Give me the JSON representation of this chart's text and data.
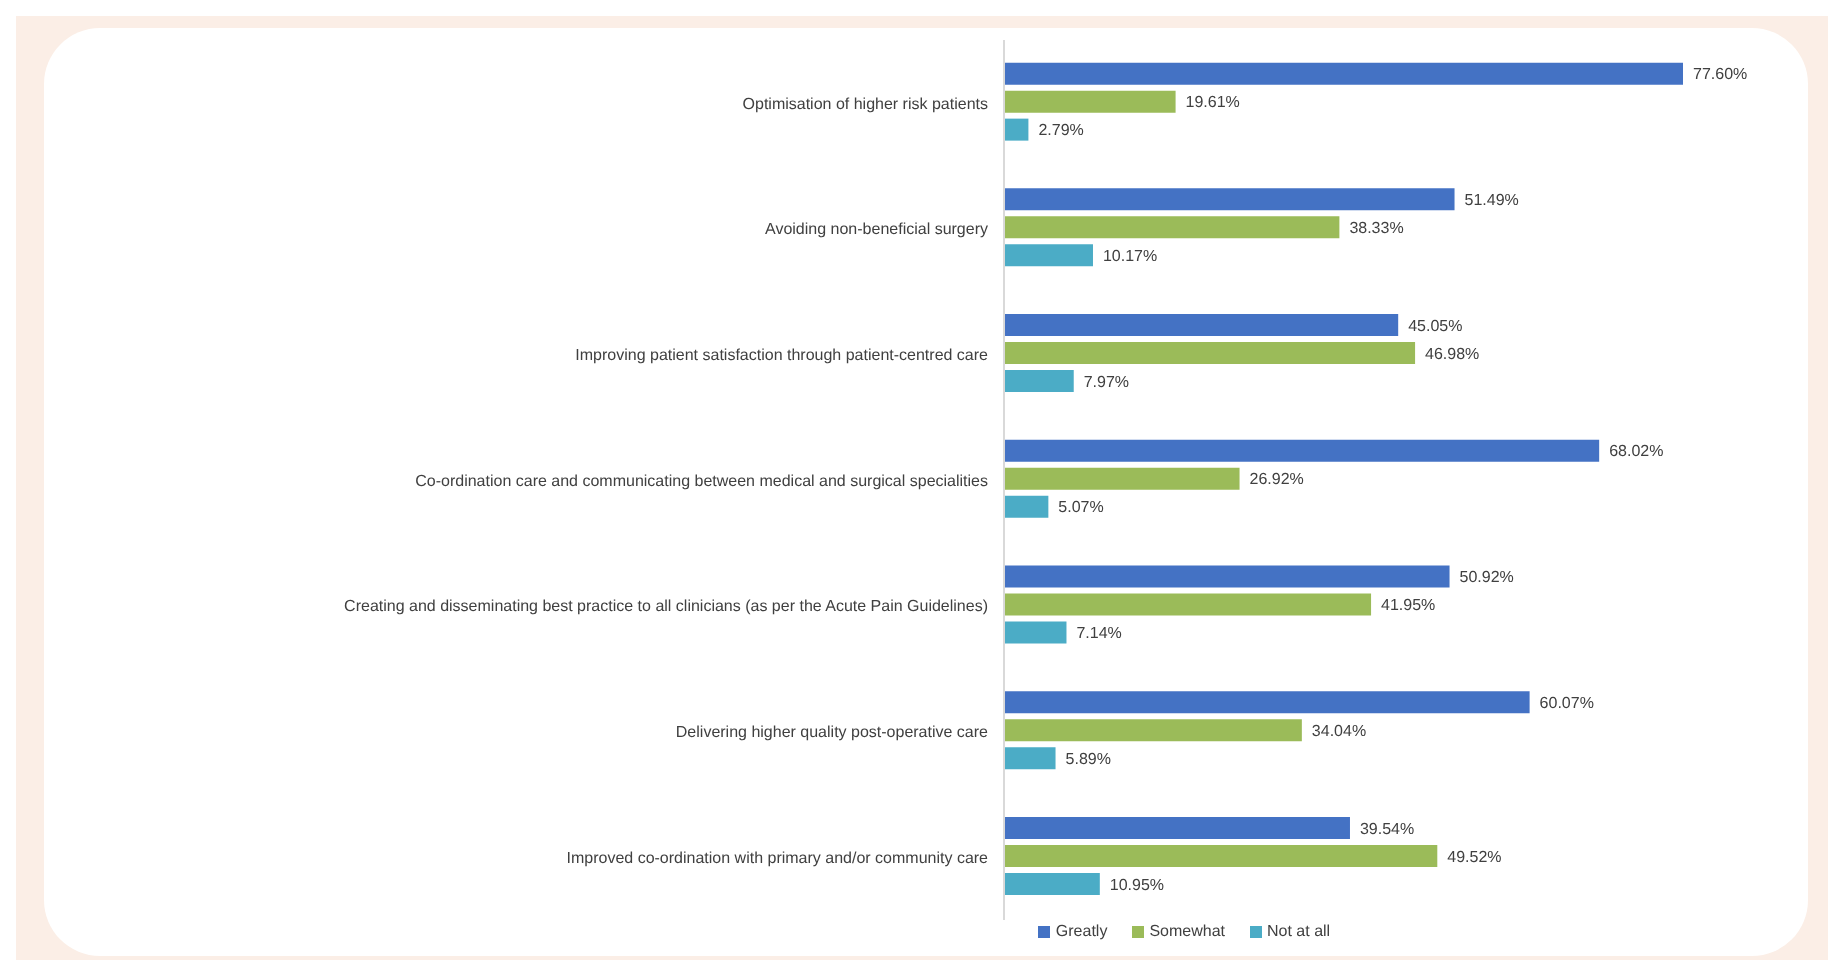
{
  "chart_data": {
    "type": "bar",
    "orientation": "horizontal",
    "categories": [
      "Optimisation of higher risk patients",
      "Avoiding non-beneficial surgery",
      "Improving patient satisfaction through patient-centred care",
      "Co-ordination care and communicating between medical and surgical specialities",
      "Creating and disseminating best practice to all clinicians (as per the Acute Pain Guidelines)",
      "Delivering higher quality post-operative care",
      "Improved co-ordination with primary and/or community care"
    ],
    "series": [
      {
        "name": "Greatly",
        "color": "#4472c4",
        "values": [
          77.6,
          51.49,
          45.05,
          68.02,
          50.92,
          60.07,
          39.54
        ],
        "value_labels": [
          "77.60%",
          "51.49%",
          "45.05%",
          "68.02%",
          "50.92%",
          "60.07%",
          "39.54%"
        ]
      },
      {
        "name": "Somewhat",
        "color": "#9bbb59",
        "values": [
          19.61,
          38.33,
          46.98,
          26.92,
          41.95,
          34.04,
          49.52
        ],
        "value_labels": [
          "19.61%",
          "38.33%",
          "46.98%",
          "26.92%",
          "41.95%",
          "34.04%",
          "49.52%"
        ]
      },
      {
        "name": "Not at all",
        "color": "#4bacc6",
        "values": [
          2.79,
          10.17,
          7.97,
          5.07,
          7.14,
          5.89,
          10.95
        ],
        "value_labels": [
          "2.79%",
          "10.17%",
          "7.97%",
          "5.07%",
          "7.14%",
          "5.89%",
          "10.95%"
        ]
      }
    ],
    "tick_labels": "y",
    "legend": "bottom",
    "grid": false
  }
}
